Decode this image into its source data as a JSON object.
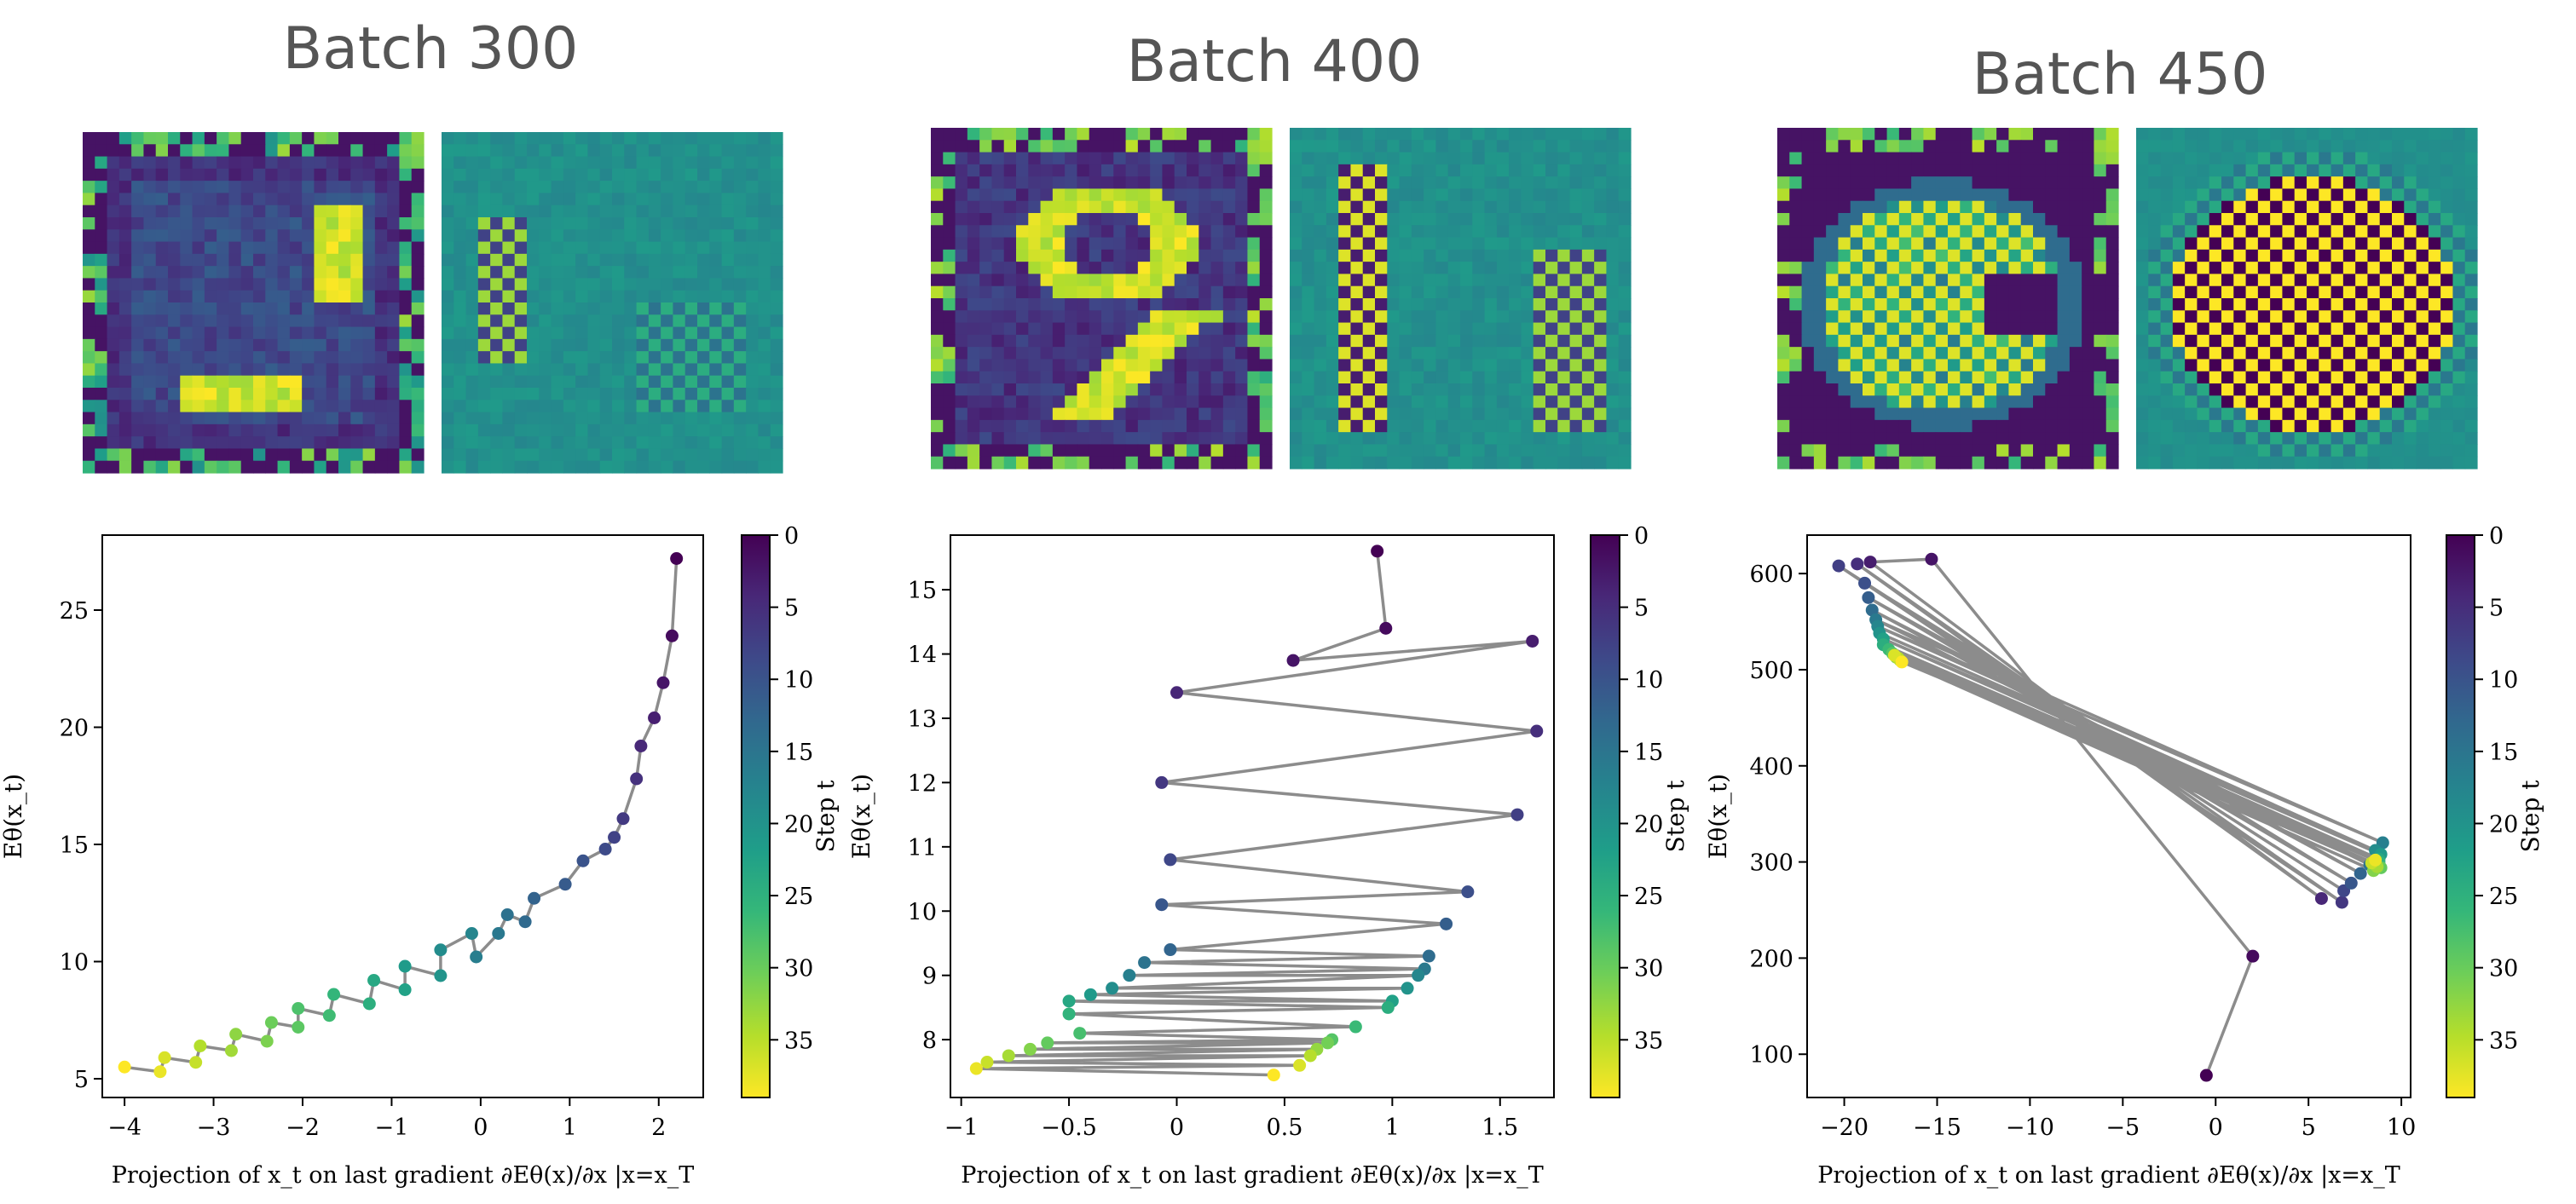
{
  "panels": [
    {
      "title": "Batch 300"
    },
    {
      "title": "Batch 400"
    },
    {
      "title": "Batch 450"
    }
  ],
  "colors": {
    "viridis": [
      "#440154",
      "#482878",
      "#3e4989",
      "#31688e",
      "#26828e",
      "#1f9e89",
      "#35b779",
      "#6ece58",
      "#b5de2b",
      "#fde725"
    ],
    "line": "#808080",
    "title": "#555555"
  },
  "chart_data": [
    {
      "type": "scatter",
      "title": "",
      "xlabel": "Projection of x_t on last gradient ∂Eθ(x)/∂x |x=x_T",
      "ylabel": "Eθ(x_t)",
      "colorbar_label": "Step t",
      "xlim": [
        -4.25,
        2.5
      ],
      "ylim": [
        4.2,
        28.2
      ],
      "xticks": [
        -4,
        -3,
        -2,
        -1,
        0,
        1,
        2
      ],
      "yticks": [
        5,
        10,
        15,
        20,
        25
      ],
      "colorbar_range": [
        0,
        39
      ],
      "colorbar_ticks": [
        0,
        5,
        10,
        15,
        20,
        25,
        30,
        35
      ],
      "points": [
        {
          "x": 2.2,
          "y": 27.2
        },
        {
          "x": 2.15,
          "y": 23.9
        },
        {
          "x": 2.05,
          "y": 21.9
        },
        {
          "x": 1.95,
          "y": 20.4
        },
        {
          "x": 1.8,
          "y": 19.2
        },
        {
          "x": 1.75,
          "y": 17.8
        },
        {
          "x": 1.6,
          "y": 16.1
        },
        {
          "x": 1.5,
          "y": 15.3
        },
        {
          "x": 1.4,
          "y": 14.8
        },
        {
          "x": 1.15,
          "y": 14.3
        },
        {
          "x": 0.95,
          "y": 13.3
        },
        {
          "x": 0.6,
          "y": 12.7
        },
        {
          "x": 0.5,
          "y": 11.7
        },
        {
          "x": 0.3,
          "y": 12.0
        },
        {
          "x": 0.2,
          "y": 11.2
        },
        {
          "x": -0.05,
          "y": 10.2
        },
        {
          "x": -0.1,
          "y": 11.2
        },
        {
          "x": -0.45,
          "y": 10.5
        },
        {
          "x": -0.45,
          "y": 9.4
        },
        {
          "x": -0.85,
          "y": 9.8
        },
        {
          "x": -0.85,
          "y": 8.8
        },
        {
          "x": -1.2,
          "y": 9.2
        },
        {
          "x": -1.25,
          "y": 8.2
        },
        {
          "x": -1.65,
          "y": 8.6
        },
        {
          "x": -1.7,
          "y": 7.7
        },
        {
          "x": -2.05,
          "y": 8.0
        },
        {
          "x": -2.05,
          "y": 7.2
        },
        {
          "x": -2.35,
          "y": 7.4
        },
        {
          "x": -2.4,
          "y": 6.6
        },
        {
          "x": -2.75,
          "y": 6.9
        },
        {
          "x": -2.8,
          "y": 6.2
        },
        {
          "x": -3.15,
          "y": 6.4
        },
        {
          "x": -3.2,
          "y": 5.7
        },
        {
          "x": -3.55,
          "y": 5.9
        },
        {
          "x": -3.6,
          "y": 5.3
        },
        {
          "x": -4.0,
          "y": 5.5
        }
      ]
    },
    {
      "type": "scatter",
      "title": "",
      "xlabel": "Projection of x_t on last gradient ∂Eθ(x)/∂x |x=x_T",
      "ylabel": "Eθ(x_t)",
      "colorbar_label": "Step t",
      "xlim": [
        -1.05,
        1.75
      ],
      "ylim": [
        7.1,
        15.85
      ],
      "xticks": [
        -1.0,
        -0.5,
        0.0,
        0.5,
        1.0,
        1.5
      ],
      "yticks": [
        8,
        9,
        10,
        11,
        12,
        13,
        14,
        15
      ],
      "colorbar_range": [
        0,
        39
      ],
      "colorbar_ticks": [
        0,
        5,
        10,
        15,
        20,
        25,
        30,
        35
      ],
      "points": [
        {
          "x": 0.93,
          "y": 15.6
        },
        {
          "x": 0.97,
          "y": 14.4
        },
        {
          "x": 0.54,
          "y": 13.9
        },
        {
          "x": 1.65,
          "y": 14.2
        },
        {
          "x": 0.0,
          "y": 13.4
        },
        {
          "x": 1.67,
          "y": 12.8
        },
        {
          "x": -0.07,
          "y": 12.0
        },
        {
          "x": 1.58,
          "y": 11.5
        },
        {
          "x": -0.03,
          "y": 10.8
        },
        {
          "x": 1.35,
          "y": 10.3
        },
        {
          "x": -0.07,
          "y": 10.1
        },
        {
          "x": 1.25,
          "y": 9.8
        },
        {
          "x": -0.03,
          "y": 9.4
        },
        {
          "x": 1.17,
          "y": 9.3
        },
        {
          "x": -0.15,
          "y": 9.2
        },
        {
          "x": 1.15,
          "y": 9.1
        },
        {
          "x": -0.22,
          "y": 9.0
        },
        {
          "x": 1.12,
          "y": 9.0
        },
        {
          "x": -0.3,
          "y": 8.8
        },
        {
          "x": 1.07,
          "y": 8.8
        },
        {
          "x": -0.4,
          "y": 8.7
        },
        {
          "x": 1.0,
          "y": 8.6
        },
        {
          "x": -0.5,
          "y": 8.6
        },
        {
          "x": 0.98,
          "y": 8.5
        },
        {
          "x": -0.5,
          "y": 8.4
        },
        {
          "x": 0.83,
          "y": 8.2
        },
        {
          "x": -0.45,
          "y": 8.1
        },
        {
          "x": 0.72,
          "y": 8.0
        },
        {
          "x": -0.6,
          "y": 7.95
        },
        {
          "x": 0.7,
          "y": 7.95
        },
        {
          "x": -0.68,
          "y": 7.85
        },
        {
          "x": 0.65,
          "y": 7.85
        },
        {
          "x": -0.78,
          "y": 7.75
        },
        {
          "x": 0.62,
          "y": 7.75
        },
        {
          "x": -0.88,
          "y": 7.65
        },
        {
          "x": 0.57,
          "y": 7.6
        },
        {
          "x": -0.93,
          "y": 7.55
        },
        {
          "x": 0.45,
          "y": 7.45
        }
      ]
    },
    {
      "type": "scatter",
      "title": "",
      "xlabel": "Projection of x_t on last gradient ∂Eθ(x)/∂x |x=x_T",
      "ylabel": "Eθ(x_t)",
      "colorbar_label": "Step t",
      "xlim": [
        -22.0,
        10.5
      ],
      "ylim": [
        55,
        640
      ],
      "xticks": [
        -20,
        -15,
        -10,
        -5,
        0,
        5,
        10
      ],
      "yticks": [
        100,
        200,
        300,
        400,
        500,
        600
      ],
      "colorbar_range": [
        0,
        39
      ],
      "colorbar_ticks": [
        0,
        5,
        10,
        15,
        20,
        25,
        30,
        35
      ],
      "points": [
        {
          "x": -0.5,
          "y": 78
        },
        {
          "x": 2.0,
          "y": 202
        },
        {
          "x": -15.3,
          "y": 615
        },
        {
          "x": -18.6,
          "y": 612
        },
        {
          "x": 5.7,
          "y": 262
        },
        {
          "x": -19.3,
          "y": 610
        },
        {
          "x": 6.8,
          "y": 258
        },
        {
          "x": -20.3,
          "y": 608
        },
        {
          "x": 6.9,
          "y": 270
        },
        {
          "x": -18.9,
          "y": 590
        },
        {
          "x": 7.3,
          "y": 278
        },
        {
          "x": -18.7,
          "y": 575
        },
        {
          "x": 7.8,
          "y": 288
        },
        {
          "x": -18.5,
          "y": 562
        },
        {
          "x": 8.3,
          "y": 297
        },
        {
          "x": -18.3,
          "y": 552
        },
        {
          "x": 9.0,
          "y": 320
        },
        {
          "x": -18.2,
          "y": 545
        },
        {
          "x": 8.6,
          "y": 312
        },
        {
          "x": -18.1,
          "y": 538
        },
        {
          "x": 8.9,
          "y": 308
        },
        {
          "x": -17.9,
          "y": 532
        },
        {
          "x": 8.8,
          "y": 303
        },
        {
          "x": -17.9,
          "y": 526
        },
        {
          "x": 8.8,
          "y": 300
        },
        {
          "x": -17.6,
          "y": 521
        },
        {
          "x": 8.6,
          "y": 298
        },
        {
          "x": -17.4,
          "y": 517
        },
        {
          "x": 8.9,
          "y": 294
        },
        {
          "x": -17.2,
          "y": 513
        },
        {
          "x": 8.5,
          "y": 291
        },
        {
          "x": -17.0,
          "y": 510
        },
        {
          "x": 8.7,
          "y": 295
        },
        {
          "x": -17.1,
          "y": 512
        },
        {
          "x": 8.4,
          "y": 299
        },
        {
          "x": -17.3,
          "y": 515
        },
        {
          "x": 8.6,
          "y": 302
        },
        {
          "x": -16.9,
          "y": 508
        }
      ]
    }
  ]
}
